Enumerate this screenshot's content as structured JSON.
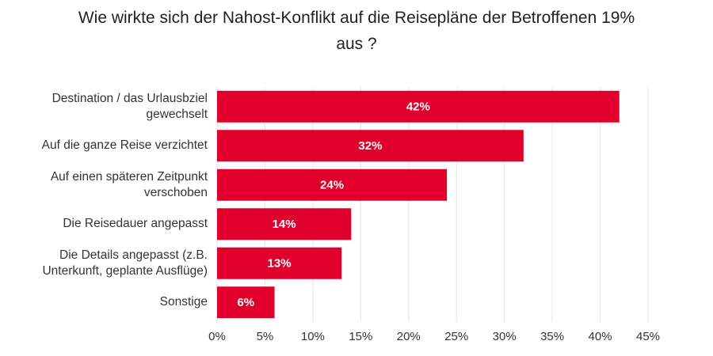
{
  "chart_data": {
    "type": "bar",
    "orientation": "horizontal",
    "title": "Wie wirkte sich der Nahost-Konflikt auf die Reisepläne der Betroffenen 19%\naus ?",
    "categories": [
      "Destination / das Urlausbziel\ngewechselt",
      "Auf die ganze Reise verzichtet",
      "Auf einen späteren Zeitpunkt\nverschoben",
      "Die Reisedauer angepasst",
      "Die Details angepasst (z.B.\nUnterkunft, geplante Ausflüge)",
      "Sonstige"
    ],
    "values": [
      42,
      32,
      24,
      14,
      13,
      6
    ],
    "value_labels": [
      "42%",
      "32%",
      "24%",
      "14%",
      "13%",
      "6%"
    ],
    "color": "#e0002b",
    "xlim": [
      0,
      45
    ],
    "xticks": [
      {
        "value": 0,
        "label": "0%"
      },
      {
        "value": 5,
        "label": "5%"
      },
      {
        "value": 10,
        "label": "10%"
      },
      {
        "value": 15,
        "label": "15%"
      },
      {
        "value": 20,
        "label": "20%"
      },
      {
        "value": 25,
        "label": "25%"
      },
      {
        "value": 30,
        "label": "30%"
      },
      {
        "value": 35,
        "label": "35%"
      },
      {
        "value": 40,
        "label": "40%"
      },
      {
        "value": 45,
        "label": "45%"
      }
    ],
    "grid": true
  }
}
